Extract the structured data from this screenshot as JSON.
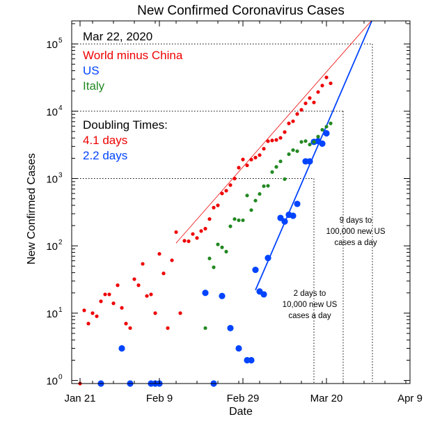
{
  "chart_data": {
    "type": "scatter",
    "title": "New Confirmed Coronavirus Cases",
    "xlabel": "Date",
    "ylabel": "New Confirmed Cases",
    "x_axis_type": "date",
    "x_ticks": [
      {
        "date": "2020-01-21",
        "label": "Jan 21"
      },
      {
        "date": "2020-02-09",
        "label": "Feb 9"
      },
      {
        "date": "2020-02-29",
        "label": "Feb 29"
      },
      {
        "date": "2020-03-20",
        "label": "Mar 20"
      },
      {
        "date": "2020-04-09",
        "label": "Apr 9"
      }
    ],
    "xlim": [
      "2020-01-19",
      "2020-04-09"
    ],
    "y_scale": "log",
    "ylim": [
      0.9,
      220000
    ],
    "y_ticks": [
      {
        "value": 1,
        "base": "10",
        "exp": "0"
      },
      {
        "value": 10,
        "base": "10",
        "exp": "1"
      },
      {
        "value": 100,
        "base": "10",
        "exp": "2"
      },
      {
        "value": 1000,
        "base": "10",
        "exp": "3"
      },
      {
        "value": 10000,
        "base": "10",
        "exp": "4"
      },
      {
        "value": 100000,
        "base": "10",
        "exp": "5"
      }
    ],
    "date_text": "Mar 22, 2020",
    "legend": [
      {
        "label": "World minus China",
        "color": "#ee0000"
      },
      {
        "label": "US",
        "color": "#0044ff"
      },
      {
        "label": "Italy",
        "color": "#228822"
      }
    ],
    "doubling": {
      "heading": "Doubling Times:",
      "items": [
        {
          "label": "4.1 days",
          "color": "#ee0000"
        },
        {
          "label": "2.2 days",
          "color": "#0044ff"
        }
      ]
    },
    "series": [
      {
        "name": "World minus China",
        "color": "#ee0000",
        "marker_size": "small",
        "points": [
          [
            "2020-01-21",
            0.9
          ],
          [
            "2020-01-22",
            11
          ],
          [
            "2020-01-23",
            7
          ],
          [
            "2020-01-24",
            10
          ],
          [
            "2020-01-25",
            9
          ],
          [
            "2020-01-26",
            15
          ],
          [
            "2020-01-27",
            19
          ],
          [
            "2020-01-28",
            19
          ],
          [
            "2020-01-29",
            14
          ],
          [
            "2020-01-30",
            26
          ],
          [
            "2020-01-31",
            12
          ],
          [
            "2020-02-01",
            7
          ],
          [
            "2020-02-02",
            6
          ],
          [
            "2020-02-03",
            32
          ],
          [
            "2020-02-04",
            26
          ],
          [
            "2020-02-05",
            54
          ],
          [
            "2020-02-06",
            18
          ],
          [
            "2020-02-07",
            19
          ],
          [
            "2020-02-08",
            10
          ],
          [
            "2020-02-09",
            76
          ],
          [
            "2020-02-10",
            39
          ],
          [
            "2020-02-11",
            6
          ],
          [
            "2020-02-12",
            61
          ],
          [
            "2020-02-13",
            160
          ],
          [
            "2020-02-14",
            10
          ],
          [
            "2020-02-15",
            119
          ],
          [
            "2020-02-16",
            117
          ],
          [
            "2020-02-17",
            150
          ],
          [
            "2020-02-18",
            131
          ],
          [
            "2020-02-19",
            166
          ],
          [
            "2020-02-20",
            180
          ],
          [
            "2020-02-21",
            250
          ],
          [
            "2020-02-22",
            370
          ],
          [
            "2020-02-23",
            400
          ],
          [
            "2020-02-24",
            600
          ],
          [
            "2020-02-25",
            660
          ],
          [
            "2020-02-26",
            800
          ],
          [
            "2020-02-27",
            1000
          ],
          [
            "2020-02-28",
            1450
          ],
          [
            "2020-02-29",
            1920
          ],
          [
            "2020-03-01",
            1570
          ],
          [
            "2020-03-02",
            1910
          ],
          [
            "2020-03-03",
            2050
          ],
          [
            "2020-03-04",
            2230
          ],
          [
            "2020-03-05",
            2770
          ],
          [
            "2020-03-06",
            3590
          ],
          [
            "2020-03-07",
            3680
          ],
          [
            "2020-03-08",
            3750
          ],
          [
            "2020-03-09",
            4020
          ],
          [
            "2020-03-10",
            4900
          ],
          [
            "2020-03-11",
            6600
          ],
          [
            "2020-03-12",
            7100
          ],
          [
            "2020-03-13",
            9100
          ],
          [
            "2020-03-14",
            10500
          ],
          [
            "2020-03-15",
            13100
          ],
          [
            "2020-03-16",
            15700
          ],
          [
            "2020-03-17",
            13500
          ],
          [
            "2020-03-18",
            19300
          ],
          [
            "2020-03-19",
            24100
          ],
          [
            "2020-03-20",
            31800
          ],
          [
            "2020-03-21",
            26000
          ]
        ]
      },
      {
        "name": "US",
        "color": "#0044ff",
        "marker_size": "large",
        "points": [
          [
            "2020-01-26",
            0.9
          ],
          [
            "2020-01-31",
            3
          ],
          [
            "2020-02-02",
            0.9
          ],
          [
            "2020-02-07",
            0.9
          ],
          [
            "2020-02-08",
            0.9
          ],
          [
            "2020-02-09",
            0.9
          ],
          [
            "2020-02-20",
            20
          ],
          [
            "2020-02-22",
            0.9
          ],
          [
            "2020-02-24",
            18
          ],
          [
            "2020-02-26",
            6
          ],
          [
            "2020-02-28",
            3
          ],
          [
            "2020-03-01",
            2
          ],
          [
            "2020-03-02",
            2
          ],
          [
            "2020-03-03",
            44
          ],
          [
            "2020-03-04",
            21
          ],
          [
            "2020-03-05",
            19
          ],
          [
            "2020-03-06",
            66
          ],
          [
            "2020-03-09",
            260
          ],
          [
            "2020-03-10",
            230
          ],
          [
            "2020-03-11",
            290
          ],
          [
            "2020-03-12",
            280
          ],
          [
            "2020-03-13",
            420
          ],
          [
            "2020-03-15",
            1800
          ],
          [
            "2020-03-16",
            1800
          ],
          [
            "2020-03-17",
            3500
          ],
          [
            "2020-03-18",
            3600
          ],
          [
            "2020-03-19",
            3300
          ],
          [
            "2020-03-20",
            4700
          ]
        ]
      },
      {
        "name": "Italy",
        "color": "#228822",
        "marker_size": "small",
        "points": [
          [
            "2020-02-20",
            6
          ],
          [
            "2020-02-21",
            65
          ],
          [
            "2020-02-22",
            48
          ],
          [
            "2020-02-23",
            105
          ],
          [
            "2020-02-24",
            95
          ],
          [
            "2020-02-25",
            82
          ],
          [
            "2020-02-26",
            195
          ],
          [
            "2020-02-27",
            250
          ],
          [
            "2020-02-28",
            240
          ],
          [
            "2020-02-29",
            240
          ],
          [
            "2020-03-01",
            560
          ],
          [
            "2020-03-02",
            340
          ],
          [
            "2020-03-03",
            470
          ],
          [
            "2020-03-04",
            590
          ],
          [
            "2020-03-05",
            770
          ],
          [
            "2020-03-06",
            780
          ],
          [
            "2020-03-07",
            1250
          ],
          [
            "2020-03-08",
            1490
          ],
          [
            "2020-03-09",
            1800
          ],
          [
            "2020-03-10",
            980
          ],
          [
            "2020-03-11",
            2300
          ],
          [
            "2020-03-12",
            2650
          ],
          [
            "2020-03-13",
            2550
          ],
          [
            "2020-03-14",
            3500
          ],
          [
            "2020-03-15",
            3600
          ],
          [
            "2020-03-16",
            3200
          ],
          [
            "2020-03-17",
            3500
          ],
          [
            "2020-03-18",
            4200
          ],
          [
            "2020-03-19",
            5300
          ],
          [
            "2020-03-20",
            5900
          ],
          [
            "2020-03-21",
            6600
          ]
        ]
      }
    ],
    "fit_lines": [
      {
        "name": "World minus China fit",
        "color": "#ee0000",
        "start": [
          "2020-02-13",
          110
        ],
        "end": [
          "2020-03-31",
          230000
        ]
      },
      {
        "name": "US fit",
        "color": "#0044ff",
        "start": [
          "2020-03-03",
          22
        ],
        "end": [
          "2020-03-31",
          230000
        ]
      }
    ],
    "reference_lines": [
      {
        "value": 1000,
        "date": "2020-03-17"
      },
      {
        "value": 10000,
        "date": "2020-03-24"
      },
      {
        "value": 100000,
        "date": "2020-03-31"
      }
    ],
    "annotations": [
      {
        "lines": [
          "2 days to",
          "10,000 new US",
          "cases a day"
        ],
        "anchor_date": "2020-03-16",
        "anchor_value": 18
      },
      {
        "lines": [
          "9 days to",
          "100,000 new US",
          "cases a day"
        ],
        "anchor_date": "2020-03-27",
        "anchor_value": 220
      }
    ]
  }
}
